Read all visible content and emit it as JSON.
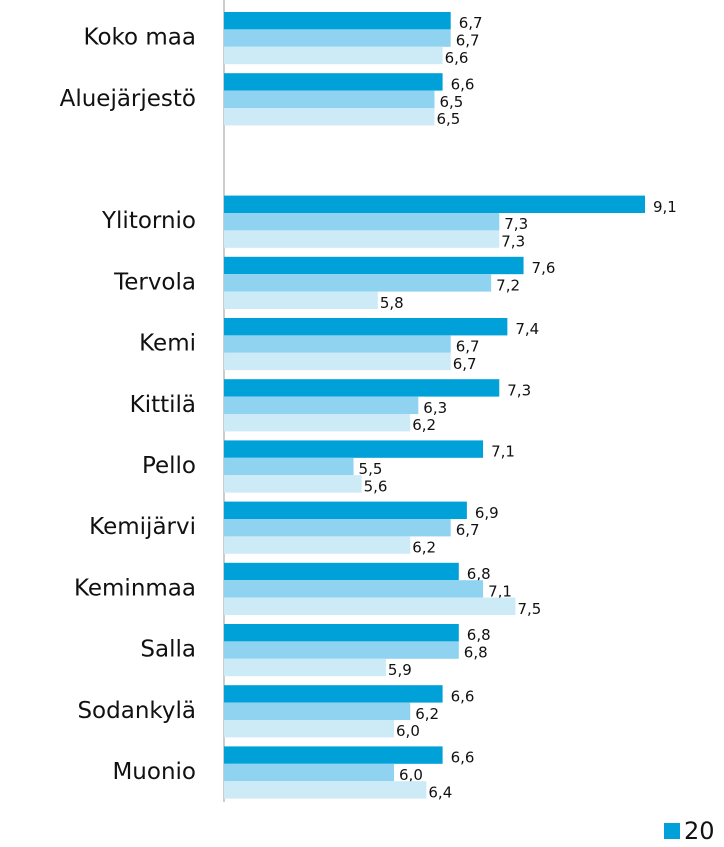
{
  "chart_data": {
    "type": "bar",
    "orientation": "horizontal",
    "categories": [
      "Koko maa",
      "Aluejärjestö",
      null,
      "Ylitornio",
      "Tervola",
      "Kemi",
      "Kittilä",
      "Pello",
      "Kemijärvi",
      "Keminmaa",
      "Salla",
      "Sodankylä",
      "Muonio"
    ],
    "xlim": [
      3.9,
      9.1
    ],
    "series": [
      {
        "name": "20",
        "color": "#00a0d8",
        "values": [
          6.7,
          6.6,
          null,
          9.1,
          7.6,
          7.4,
          7.3,
          7.1,
          6.9,
          6.8,
          6.8,
          6.6,
          6.6
        ],
        "value_labels": [
          "6,7",
          "6,6",
          null,
          "9,1",
          "7,6",
          "7,4",
          "7,3",
          "7,1",
          "6,9",
          "6,8",
          "6,8",
          "6,6",
          "6,6"
        ]
      },
      {
        "color": "#8fd3f0",
        "values": [
          6.7,
          6.5,
          null,
          7.3,
          7.2,
          6.7,
          6.3,
          5.5,
          6.7,
          7.1,
          6.8,
          6.2,
          6.0
        ],
        "value_labels": [
          "6,7",
          "6,5",
          null,
          "7,3",
          "7,2",
          "6,7",
          "6,3",
          "5,5",
          "6,7",
          "7,1",
          "6,8",
          "6,2",
          "6,0"
        ]
      },
      {
        "color": "#cdeaf7",
        "values": [
          6.6,
          6.5,
          null,
          7.3,
          5.8,
          6.7,
          6.2,
          5.6,
          6.2,
          7.5,
          5.9,
          6.0,
          6.4
        ],
        "value_labels": [
          "6,6",
          "6,5",
          null,
          "7,3",
          "5,8",
          "6,7",
          "6,2",
          "5,6",
          "6,2",
          "7,5",
          "5,9",
          "6,0",
          "6,4"
        ]
      }
    ]
  }
}
